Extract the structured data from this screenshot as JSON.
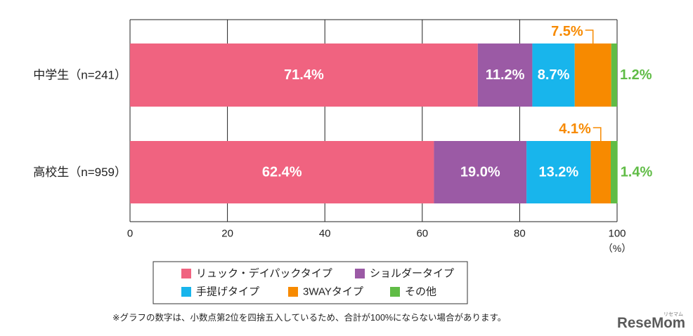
{
  "chart_data": {
    "type": "bar",
    "horizontal": true,
    "stacked": true,
    "categories": [
      "中学生（n=241）",
      "高校生（n=959）"
    ],
    "series": [
      {
        "name": "リュック・デイパックタイプ",
        "color": "#F06380",
        "values": [
          71.4,
          62.4
        ],
        "labels": [
          "71.4%",
          "62.4%"
        ]
      },
      {
        "name": "ショルダータイプ",
        "color": "#9B5AA5",
        "values": [
          11.2,
          19.0
        ],
        "labels": [
          "11.2%",
          "19.0%"
        ]
      },
      {
        "name": "手提げタイプ",
        "color": "#18B5EC",
        "values": [
          8.7,
          13.2
        ],
        "labels": [
          "8.7%",
          "13.2%"
        ]
      },
      {
        "name": "3WAYタイプ",
        "color": "#F78A00",
        "values": [
          7.5,
          4.1
        ],
        "labels": [
          "7.5%",
          "4.1%"
        ]
      },
      {
        "name": "その他",
        "color": "#60BC46",
        "values": [
          1.2,
          1.4
        ],
        "labels": [
          "1.2%",
          "1.4%"
        ]
      }
    ],
    "xlim": [
      0,
      100
    ],
    "xticks": [
      0,
      20,
      40,
      60,
      80,
      100
    ],
    "xunit": "（%）",
    "grid": true,
    "legend": "bottom"
  },
  "footnote": "※グラフの数字は、小数点第2位を四捨五入しているため、合計が100%にならない場合があります。",
  "logo": {
    "text": "ReseMom",
    "sub": "リセマム"
  }
}
